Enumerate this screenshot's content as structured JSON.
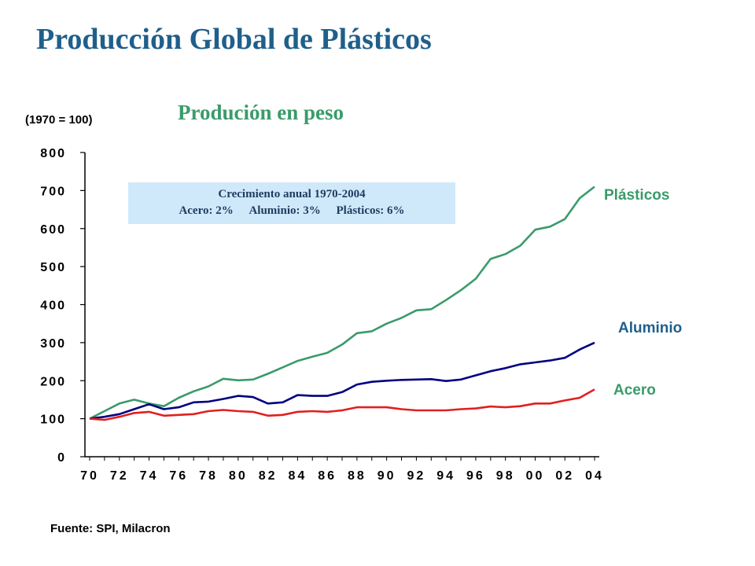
{
  "title": "Producción Global de Plásticos",
  "subtitle": "Produción en peso",
  "base_note": "(1970 = 100)",
  "source": "Fuente: SPI, Milacron",
  "growth_box": {
    "line1": "Crecimiento anual 1970-2004",
    "acero": "Acero: 2%",
    "aluminio": "Aluminio: 3%",
    "plasticos": "Plásticos: 6%"
  },
  "colors": {
    "title": "#1f5f8b",
    "subtitle": "#3a9b6a",
    "plasticos": "#3a9b6a",
    "aluminio": "#000080",
    "acero": "#e02020",
    "box_bg": "#cfe9fb"
  },
  "chart_data": {
    "type": "line",
    "ylim": [
      0,
      800
    ],
    "yticks": [
      0,
      100,
      200,
      300,
      400,
      500,
      600,
      700,
      800
    ],
    "xlim": [
      1970,
      2004
    ],
    "xticks": [
      "70",
      "72",
      "74",
      "76",
      "78",
      "80",
      "82",
      "84",
      "86",
      "88",
      "90",
      "92",
      "94",
      "96",
      "98",
      "00",
      "02",
      "04"
    ],
    "x": [
      1970,
      1971,
      1972,
      1973,
      1974,
      1975,
      1976,
      1977,
      1978,
      1979,
      1980,
      1981,
      1982,
      1983,
      1984,
      1985,
      1986,
      1987,
      1988,
      1989,
      1990,
      1991,
      1992,
      1993,
      1994,
      1995,
      1996,
      1997,
      1998,
      1999,
      2000,
      2001,
      2002,
      2003,
      2004
    ],
    "series": [
      {
        "name": "Plásticos",
        "color": "#3a9b6a",
        "values": [
          100,
          120,
          140,
          150,
          140,
          133,
          155,
          172,
          185,
          205,
          201,
          203,
          218,
          235,
          252,
          263,
          273,
          295,
          325,
          330,
          350,
          365,
          385,
          388,
          412,
          438,
          468,
          520,
          533,
          555,
          597,
          605,
          625,
          680,
          710
        ]
      },
      {
        "name": "Aluminio",
        "color": "#000080",
        "values": [
          100,
          105,
          112,
          125,
          138,
          125,
          130,
          143,
          145,
          152,
          160,
          157,
          140,
          143,
          162,
          160,
          160,
          170,
          190,
          197,
          200,
          202,
          203,
          204,
          199,
          203,
          214,
          225,
          233,
          243,
          248,
          253,
          260,
          282,
          300
        ]
      },
      {
        "name": "Acero",
        "color": "#e02020",
        "values": [
          100,
          97,
          105,
          115,
          118,
          108,
          110,
          112,
          120,
          123,
          120,
          118,
          108,
          110,
          118,
          120,
          118,
          122,
          130,
          130,
          130,
          125,
          122,
          122,
          122,
          125,
          127,
          132,
          130,
          133,
          140,
          140,
          148,
          155,
          177
        ]
      }
    ]
  }
}
